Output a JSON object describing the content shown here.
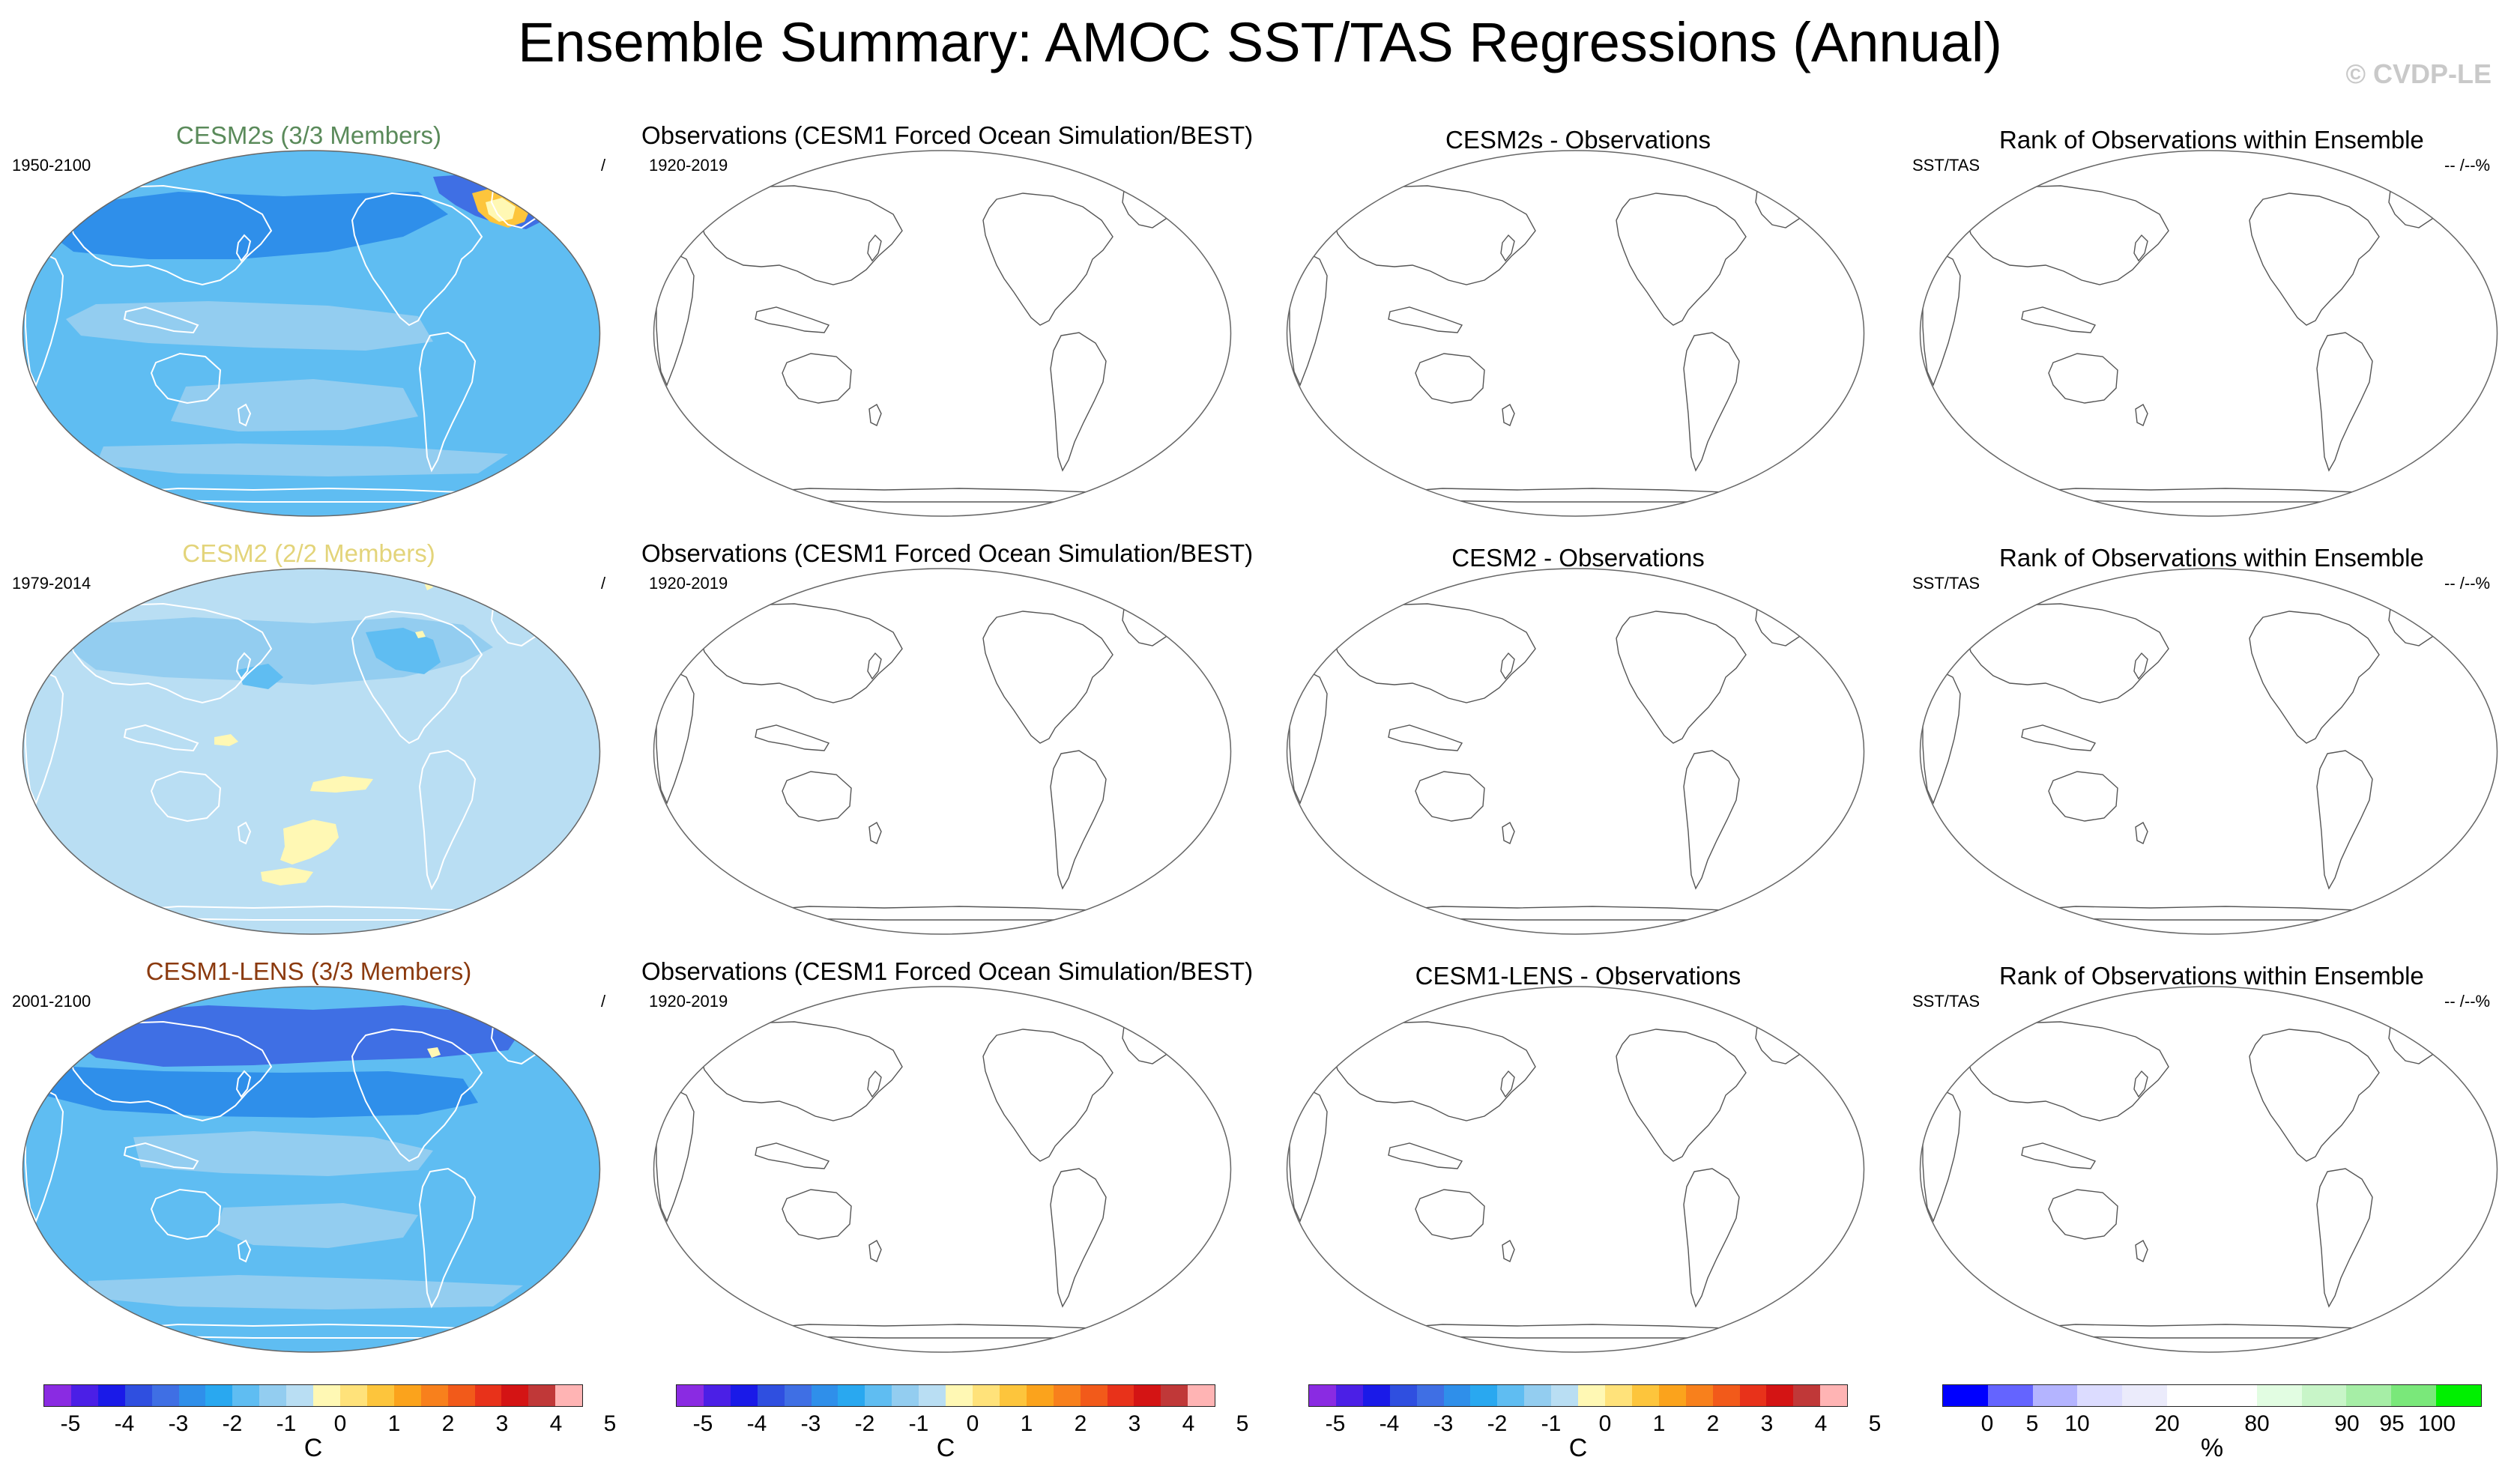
{
  "title": "Ensemble Summary: AMOC SST/TAS Regressions (Annual)",
  "watermark": "© CVDP-LE",
  "rows": [
    {
      "model_title": "CESM2s (3/3 Members)",
      "model_title_color": "#5a8a5a",
      "model_years": "1950-2100",
      "model_right": "/",
      "obs_title": "Observations (CESM1 Forced Ocean Simulation/BEST)",
      "obs_years": "1920-2019",
      "diff_title": "CESM2s - Observations",
      "rank_title": "Rank of Observations within Ensemble",
      "rank_left": "SST/TAS",
      "rank_right": "-- /--%"
    },
    {
      "model_title": "CESM2 (2/2 Members)",
      "model_title_color": "#e3d47a",
      "model_years": "1979-2014",
      "model_right": "/",
      "obs_title": "Observations (CESM1 Forced Ocean Simulation/BEST)",
      "obs_years": "1920-2019",
      "diff_title": "CESM2 - Observations",
      "rank_title": "Rank of Observations within Ensemble",
      "rank_left": "SST/TAS",
      "rank_right": "-- /--%"
    },
    {
      "model_title": "CESM1-LENS (3/3 Members)",
      "model_title_color": "#8b3a0f",
      "model_years": "2001-2100",
      "model_right": "/",
      "obs_title": "Observations (CESM1 Forced Ocean Simulation/BEST)",
      "obs_years": "1920-2019",
      "diff_title": "CESM1-LENS - Observations",
      "rank_title": "Rank of Observations within Ensemble",
      "rank_left": "SST/TAS",
      "rank_right": "-- /--%"
    }
  ],
  "colorbars": {
    "temp_colors": [
      "#8a2be2",
      "#4b1fe6",
      "#1a1ae8",
      "#2f4fe0",
      "#3f6fe4",
      "#2f8fea",
      "#29a8f0",
      "#5fbdf2",
      "#93cdf0",
      "#b9def3",
      "#fff8b4",
      "#ffe27a",
      "#fdc53c",
      "#fba31c",
      "#f8801c",
      "#f25a1a",
      "#e8321a",
      "#d41414",
      "#c03838",
      "#ffb4b4"
    ],
    "temp_labels": [
      "-5",
      "-4",
      "-3",
      "-2",
      "-1",
      "0",
      "1",
      "2",
      "3",
      "4",
      "5"
    ],
    "temp_unit": "C",
    "rank_colors": [
      "#0000ff",
      "#6464ff",
      "#b4b4ff",
      "#dcdcff",
      "#ebebfb",
      "#ffffff",
      "#ffffff",
      "#e2fde2",
      "#c8f5c8",
      "#a6eea6",
      "#7ae87a",
      "#00f000"
    ],
    "rank_labels": [
      "0",
      "5",
      "10",
      "20",
      "80",
      "90",
      "95",
      "100"
    ],
    "rank_unit": "%"
  },
  "map_colors": {
    "row1": {
      "base": "#5fbdf2",
      "light": "#93cdf0",
      "mid": "#2f8fea",
      "deep": "#3f6fe4",
      "anom": "#fdc53c",
      "anom2": "#fff8b4"
    },
    "row2": {
      "base": "#b9def3",
      "light": "#93cdf0",
      "mid": "#93cdf0",
      "deep": "#5fbdf2",
      "anom": "#fff8b4",
      "anom2": "#ffe27a"
    },
    "row3": {
      "base": "#5fbdf2",
      "light": "#93cdf0",
      "mid": "#2f8fea",
      "deep": "#3f6fe4",
      "anom": "#fff8b4",
      "anom2": "#ffe27a"
    }
  }
}
